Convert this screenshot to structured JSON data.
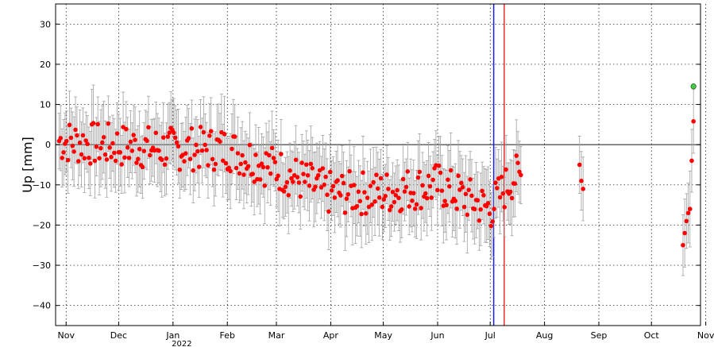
{
  "chart_data": {
    "type": "scatter",
    "title": "",
    "xlabel": "",
    "ylabel": "Up [mm]",
    "year_label": "2022",
    "ylim": [
      -45,
      35
    ],
    "xlim": [
      -6,
      362
    ],
    "y_ticks": [
      30,
      20,
      10,
      0,
      -10,
      -20,
      -30,
      -40
    ],
    "y_tick_labels": [
      "30",
      "20",
      "10",
      "0",
      "−10",
      "−20",
      "−30",
      "−40"
    ],
    "x_ticks": [
      {
        "label": "Nov",
        "day": 0
      },
      {
        "label": "Dec",
        "day": 30
      },
      {
        "label": "Jan",
        "day": 61
      },
      {
        "label": "Feb",
        "day": 92
      },
      {
        "label": "Mar",
        "day": 120
      },
      {
        "label": "Apr",
        "day": 151
      },
      {
        "label": "May",
        "day": 181
      },
      {
        "label": "Jun",
        "day": 212
      },
      {
        "label": "Jul",
        "day": 242
      },
      {
        "label": "Aug",
        "day": 273
      },
      {
        "label": "Sep",
        "day": 304
      },
      {
        "label": "Oct",
        "day": 334
      },
      {
        "label": "Nov",
        "day": 365
      }
    ],
    "grid": true,
    "zero_line": 0,
    "vlines": [
      {
        "day": 244,
        "color": "#1a1aff"
      },
      {
        "day": 250,
        "color": "#e83030"
      }
    ],
    "highlight_point": {
      "day": 358,
      "y": 14.5,
      "color": "#44cc44"
    },
    "point_color": "#ff0000",
    "error_color": "#a0a0a0",
    "series": [
      {
        "segment": "main",
        "start_day": -4,
        "end_day": 260,
        "trend": [
          [
            -4,
            1
          ],
          [
            20,
            0
          ],
          [
            60,
            -1
          ],
          [
            92,
            -1
          ],
          [
            120,
            -6
          ],
          [
            150,
            -12
          ],
          [
            180,
            -12
          ],
          [
            212,
            -10
          ],
          [
            242,
            -16
          ],
          [
            255,
            -8
          ]
        ]
      },
      {
        "segment": "aug",
        "days": [
          293,
          294,
          295
        ],
        "values": [
          -5,
          -9,
          -11
        ]
      },
      {
        "segment": "oct",
        "days": [
          352,
          353,
          354,
          355,
          356,
          357,
          358
        ],
        "values": [
          -25,
          -22,
          -19,
          -17,
          -16,
          -4,
          5.8
        ]
      }
    ],
    "errors_mm": 8
  }
}
